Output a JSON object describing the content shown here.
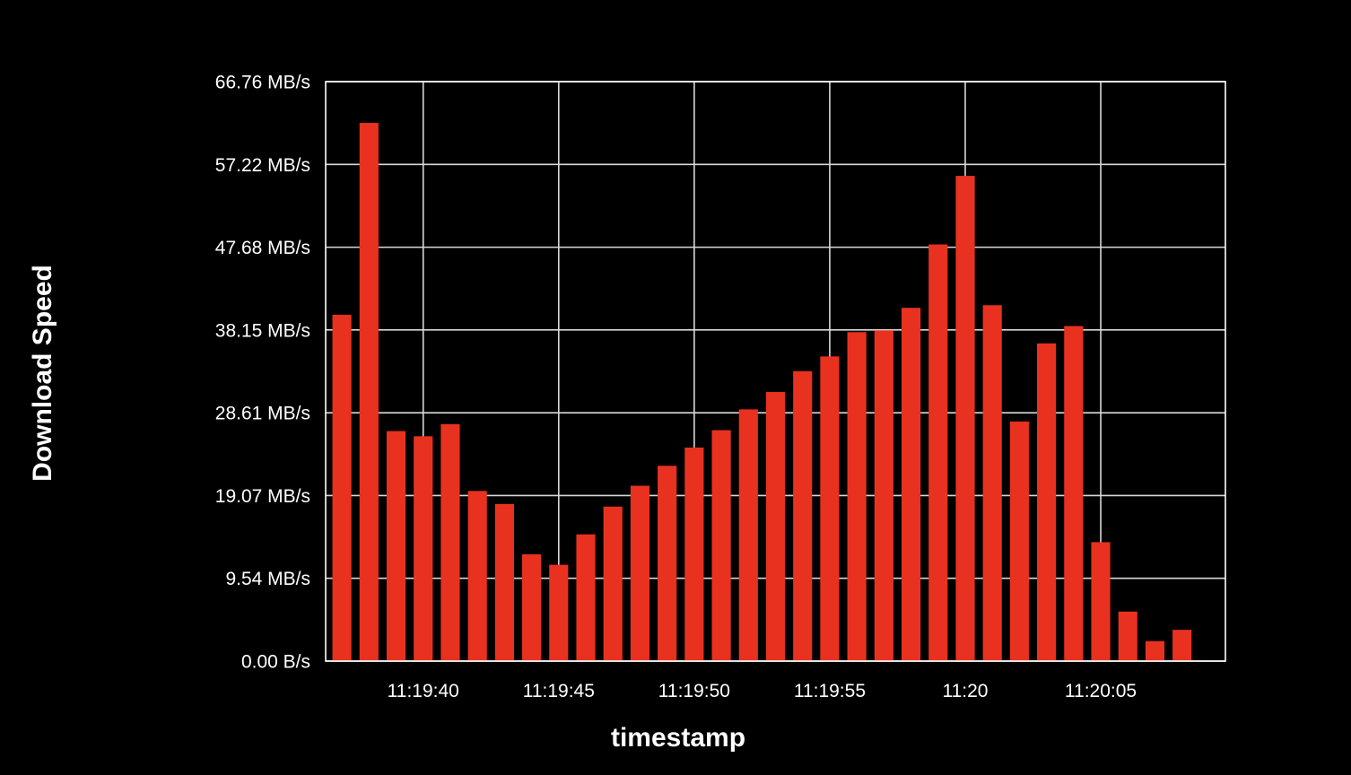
{
  "chart_data": {
    "type": "bar",
    "xlabel": "timestamp",
    "ylabel": "Download Speed",
    "bar_color": "#e8321f",
    "background_color": "#000000",
    "grid": true,
    "ylim": [
      0,
      66.76
    ],
    "y_ticks": [
      {
        "value": 0,
        "label": "0.00 B/s"
      },
      {
        "value": 9.54,
        "label": "9.54 MB/s"
      },
      {
        "value": 19.07,
        "label": "19.07 MB/s"
      },
      {
        "value": 28.61,
        "label": "28.61 MB/s"
      },
      {
        "value": 38.15,
        "label": "38.15 MB/s"
      },
      {
        "value": 47.68,
        "label": "47.68 MB/s"
      },
      {
        "value": 57.22,
        "label": "57.22 MB/s"
      },
      {
        "value": 66.76,
        "label": "66.76 MB/s"
      }
    ],
    "x_range": [
      "11:19:36.4",
      "11:20:09.6"
    ],
    "x_ticks": [
      {
        "value": "11:19:40",
        "label": "11:19:40"
      },
      {
        "value": "11:19:45",
        "label": "11:19:45"
      },
      {
        "value": "11:19:50",
        "label": "11:19:50"
      },
      {
        "value": "11:19:55",
        "label": "11:19:55"
      },
      {
        "value": "11:20:00",
        "label": "11:20"
      },
      {
        "value": "11:20:05",
        "label": "11:20:05"
      }
    ],
    "x": [
      "11:19:37",
      "11:19:38",
      "11:19:39",
      "11:19:40",
      "11:19:41",
      "11:19:42",
      "11:19:43",
      "11:19:44",
      "11:19:45",
      "11:19:46",
      "11:19:47",
      "11:19:48",
      "11:19:49",
      "11:19:50",
      "11:19:51",
      "11:19:52",
      "11:19:53",
      "11:19:54",
      "11:19:55",
      "11:19:56",
      "11:19:57",
      "11:19:58",
      "11:19:59",
      "11:20:00",
      "11:20:01",
      "11:20:02",
      "11:20:03",
      "11:20:04",
      "11:20:05",
      "11:20:06",
      "11:20:07",
      "11:20:08"
    ],
    "values": [
      39.9,
      62.0,
      26.5,
      25.9,
      27.3,
      19.6,
      18.1,
      12.3,
      11.1,
      14.6,
      17.8,
      20.2,
      22.5,
      24.6,
      26.6,
      29.0,
      31.0,
      33.4,
      35.1,
      37.9,
      38.1,
      40.7,
      48.0,
      55.9,
      41.0,
      27.6,
      36.6,
      38.6,
      13.7,
      5.7,
      2.3,
      3.6
    ]
  }
}
